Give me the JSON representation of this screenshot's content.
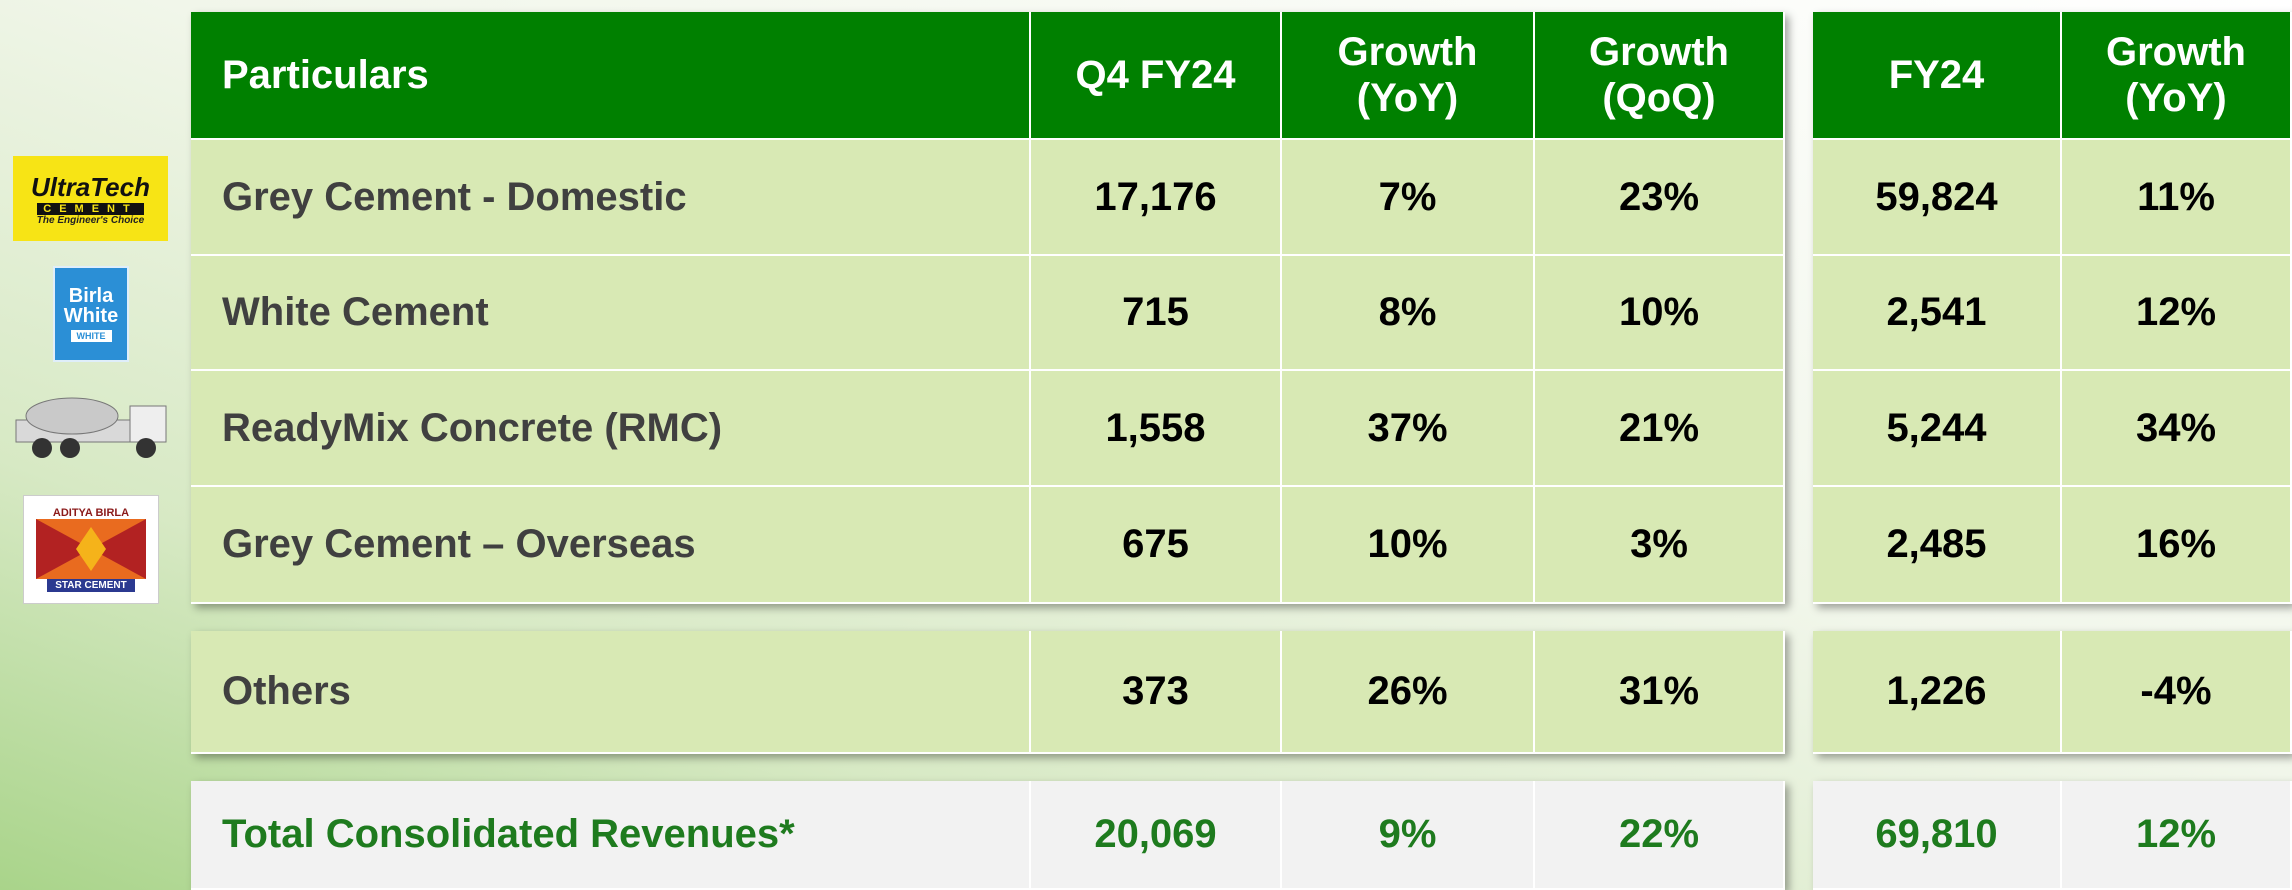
{
  "logos": [
    {
      "name": "UltraTech",
      "sub": "CEMENT",
      "tagline": "The Engineer's Choice"
    },
    {
      "name": "Birla White",
      "sub": "WHITE"
    },
    {
      "name": "ADITYA BIRLA",
      "sub": "STAR CEMENT"
    }
  ],
  "table": {
    "header": [
      "Particulars",
      "Q4 FY24",
      "Growth (YoY)",
      "Growth (QoQ)",
      "FY24",
      "Growth (YoY)"
    ],
    "rows": [
      [
        "Grey Cement - Domestic",
        "17,176",
        "7%",
        "23%",
        "59,824",
        "11%"
      ],
      [
        "White Cement",
        "715",
        "8%",
        "10%",
        "2,541",
        "12%"
      ],
      [
        "ReadyMix Concrete (RMC)",
        "1,558",
        "37%",
        "21%",
        "5,244",
        "34%"
      ],
      [
        "Grey Cement – Overseas",
        "675",
        "10%",
        "3%",
        "2,485",
        "16%"
      ],
      [
        "Others",
        "373",
        "26%",
        "31%",
        "1,226",
        "-4%"
      ],
      [
        "Total Consolidated Revenues*",
        "20,069",
        "9%",
        "22%",
        "69,810",
        "12%"
      ]
    ]
  }
}
